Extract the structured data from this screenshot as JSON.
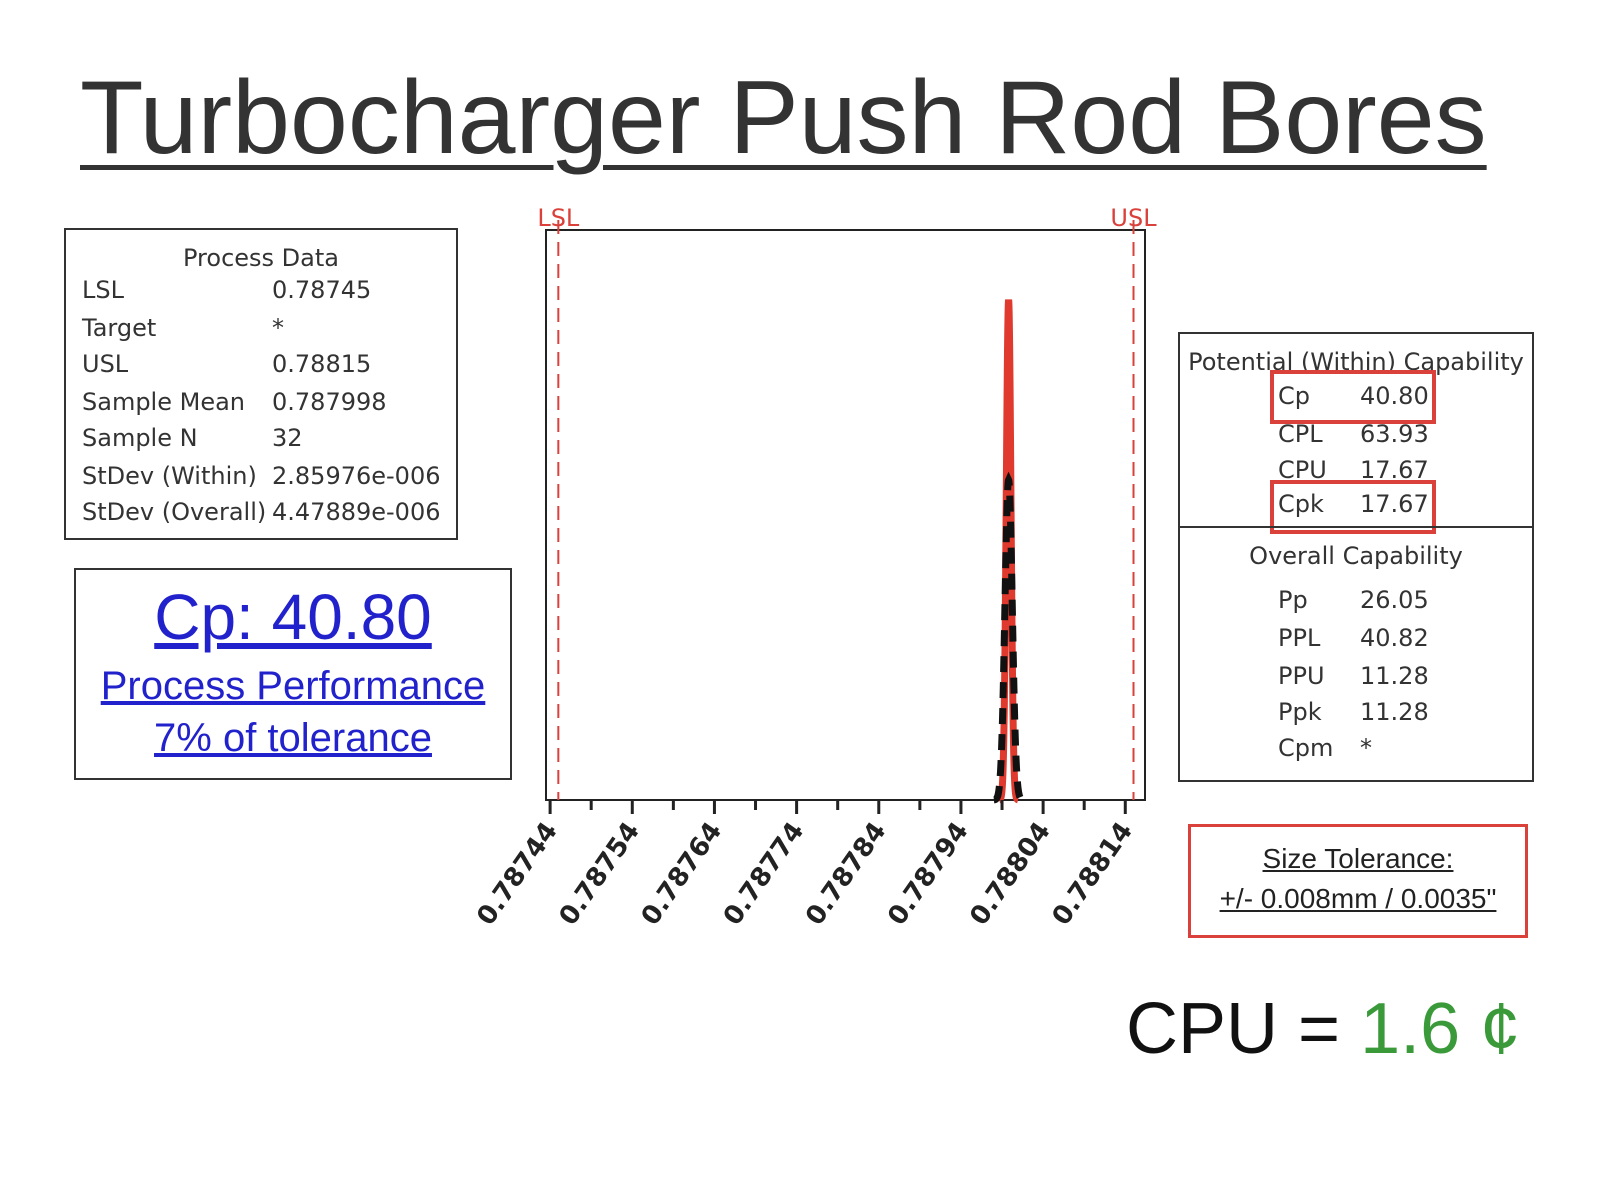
{
  "title": "Turbocharger Push Rod Bores",
  "process_data": {
    "header": "Process Data",
    "rows": [
      {
        "label": "LSL",
        "value": "0.78745"
      },
      {
        "label": "Target",
        "value": "*"
      },
      {
        "label": "USL",
        "value": "0.78815"
      },
      {
        "label": "Sample Mean",
        "value": "0.787998"
      },
      {
        "label": "Sample N",
        "value": "32"
      },
      {
        "label": "StDev (Within)",
        "value": "2.85976e-006"
      },
      {
        "label": "StDev (Overall)",
        "value": "4.47889e-006"
      }
    ]
  },
  "cp_summary": {
    "headline": "Cp: 40.80",
    "line2": "Process Performance",
    "line3": "7% of tolerance",
    "color": "#2222cc"
  },
  "capability": {
    "potential_header": "Potential (Within) Capability",
    "potential_rows": [
      {
        "label": "Cp",
        "value": "40.80"
      },
      {
        "label": "CPL",
        "value": "63.93"
      },
      {
        "label": "CPU",
        "value": "17.67"
      },
      {
        "label": "Cpk",
        "value": "17.67"
      }
    ],
    "overall_header": "Overall Capability",
    "overall_rows": [
      {
        "label": "Pp",
        "value": "26.05"
      },
      {
        "label": "PPL",
        "value": "40.82"
      },
      {
        "label": "PPU",
        "value": "11.28"
      },
      {
        "label": "Ppk",
        "value": "11.28"
      },
      {
        "label": "Cpm",
        "value": "*"
      }
    ],
    "highlight_color": "#d9413a"
  },
  "tolerance": {
    "line1": "Size Tolerance:",
    "line2": "+/- 0.008mm / 0.0035\""
  },
  "cpu": {
    "prefix": "CPU = ",
    "value": "1.6 ¢",
    "value_color": "#3a9a3a"
  },
  "chart_data": {
    "type": "histogram-with-density",
    "xlim": [
      0.787435,
      0.788164
    ],
    "tick_labels": [
      "0.78744",
      "0.78754",
      "0.78764",
      "0.78774",
      "0.78784",
      "0.78794",
      "0.78804",
      "0.78814"
    ],
    "tick_values": [
      0.78744,
      0.78754,
      0.78764,
      0.78774,
      0.78784,
      0.78794,
      0.78804,
      0.78814
    ],
    "spec_limits": [
      {
        "label": "LSL",
        "value": 0.78745
      },
      {
        "label": "USL",
        "value": 0.78815
      }
    ],
    "mean": 0.787998,
    "sd_within": 2.85976e-06,
    "sd_overall": 4.47889e-06,
    "series": [
      {
        "name": "Within",
        "style": "solid",
        "color": "#e03a2e"
      },
      {
        "name": "Overall",
        "style": "dashed",
        "color": "#111111"
      }
    ],
    "spec_color": "#d9413a"
  }
}
